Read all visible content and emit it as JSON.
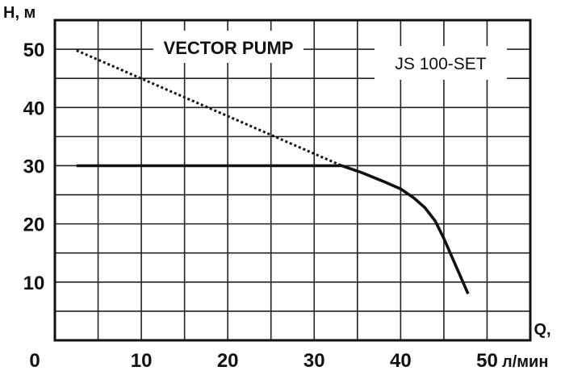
{
  "chart_data": {
    "type": "line",
    "title": "VECTOR PUMP",
    "model": "JS 100-SET",
    "ylabel": "H, м",
    "xlabel_letter": "Q,",
    "xlabel_unit": "л/мин",
    "x_ticks": [
      "0",
      "10",
      "20",
      "30",
      "40",
      "50"
    ],
    "y_ticks": [
      "10",
      "20",
      "30",
      "40",
      "50"
    ],
    "xlim": [
      0,
      55
    ],
    "ylim": [
      0,
      55
    ],
    "grid": true,
    "series": [
      {
        "style": "solid",
        "color": "#111111",
        "x": [
          2.5,
          33.2,
          35.5,
          38.0,
          40.0,
          41.5,
          42.8,
          44.0,
          45.0,
          47.8
        ],
        "y": [
          30,
          30,
          28.8,
          27.3,
          26.0,
          24.5,
          22.8,
          20.5,
          17.5,
          8.0
        ]
      },
      {
        "style": "dotted",
        "color": "#111111",
        "x": [
          2.5,
          33.2
        ],
        "y": [
          49.8,
          30
        ]
      }
    ]
  }
}
